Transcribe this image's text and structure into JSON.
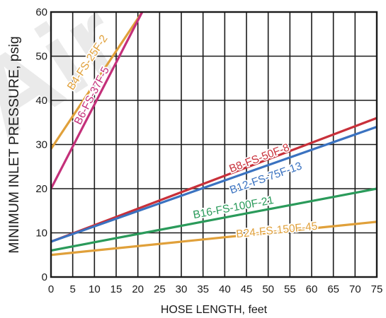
{
  "chart_data": {
    "type": "line",
    "xlabel": "HOSE LENGTH, feet",
    "ylabel": "MINIMUM INLET PRESSURE, psig",
    "xlim": [
      0,
      75
    ],
    "ylim": [
      0,
      60
    ],
    "x_ticks": [
      "0",
      "5",
      "10",
      "15",
      "20",
      "25",
      "30",
      "35",
      "40",
      "45",
      "50",
      "55",
      "60",
      "65",
      "70",
      "75"
    ],
    "y_ticks": [
      "0",
      "10",
      "20",
      "30",
      "40",
      "50",
      "60"
    ],
    "grid": true,
    "watermark": "Air",
    "series": [
      {
        "name": "B4-FS-25F-2",
        "color": "#E0A03A",
        "x": [
          0,
          21
        ],
        "y": [
          29,
          60
        ],
        "label_pos": {
          "x": 8.5,
          "y": 48.5
        }
      },
      {
        "name": "B6-FS-37F-5",
        "color": "#C4307A",
        "x": [
          0,
          21
        ],
        "y": [
          20,
          60
        ],
        "label_pos": {
          "x": 9.5,
          "y": 41
        }
      },
      {
        "name": "B8-FS-50F-8",
        "color": "#C8303A",
        "x": [
          0,
          75
        ],
        "y": [
          8,
          36
        ],
        "label_pos": {
          "x": 48,
          "y": 26.8
        }
      },
      {
        "name": "B12-FS-75F-13",
        "color": "#3A72C0",
        "x": [
          0,
          75
        ],
        "y": [
          8,
          34
        ],
        "label_pos": {
          "x": 49.5,
          "y": 22.3
        }
      },
      {
        "name": "B16-FS-100F-21",
        "color": "#2A9A5A",
        "x": [
          0,
          75
        ],
        "y": [
          6,
          20
        ],
        "label_pos": {
          "x": 42,
          "y": 15.6
        }
      },
      {
        "name": "B24-FS-150F-45",
        "color": "#E0A03A",
        "x": [
          0,
          75
        ],
        "y": [
          5,
          12.5
        ],
        "label_pos": {
          "x": 52,
          "y": 10.5
        }
      }
    ]
  }
}
